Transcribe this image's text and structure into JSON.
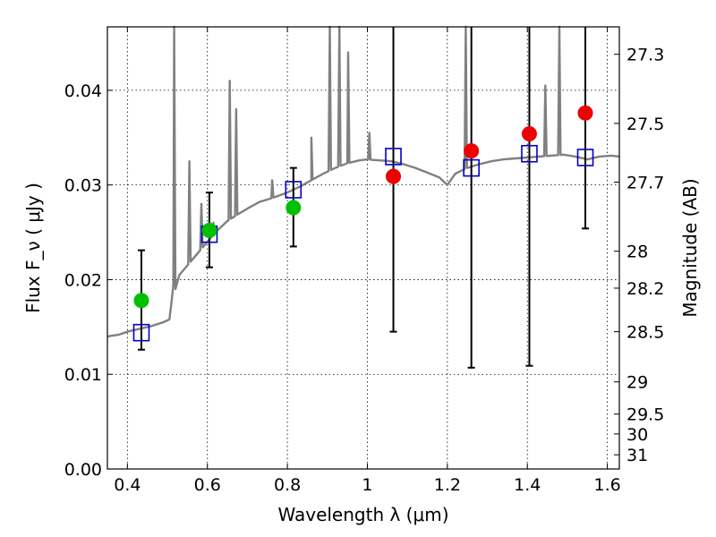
{
  "chart_data": {
    "type": "scatter",
    "xlabel": "Wavelength  λ (μm)",
    "ylabel": "Flux  F_ν  ( μJy )",
    "ylabel_right": "Magnitude (AB)",
    "xlim": [
      0.35,
      1.63
    ],
    "ylim": [
      0.0,
      0.0467
    ],
    "grid": true,
    "x_ticks": [
      0.4,
      0.6,
      0.8,
      1.0,
      1.2,
      1.4,
      1.6
    ],
    "x_tick_labels": [
      "0.4",
      "0.6",
      "0.8",
      "1",
      "1.2",
      "1.4",
      "1.6"
    ],
    "y_ticks": [
      0.0,
      0.01,
      0.02,
      0.03,
      0.04
    ],
    "y_tick_labels": [
      "0.00",
      "0.01",
      "0.02",
      "0.03",
      "0.04"
    ],
    "right_ticks": [
      {
        "label": "27.3",
        "flux": 0.0438
      },
      {
        "label": "27.5",
        "flux": 0.0365
      },
      {
        "label": "27.7",
        "flux": 0.0303
      },
      {
        "label": "28",
        "flux": 0.023
      },
      {
        "label": "28.2",
        "flux": 0.0191
      },
      {
        "label": "28.5",
        "flux": 0.0145
      },
      {
        "label": "29",
        "flux": 0.0092
      },
      {
        "label": "29.5",
        "flux": 0.0058
      },
      {
        "label": "30",
        "flux": 0.0037
      },
      {
        "label": "31",
        "flux": 0.0015
      }
    ],
    "model_color": "#808080",
    "model_spectrum": [
      [
        0.35,
        0.014
      ],
      [
        0.38,
        0.0142
      ],
      [
        0.4,
        0.0145
      ],
      [
        0.43,
        0.0148
      ],
      [
        0.46,
        0.0151
      ],
      [
        0.49,
        0.0155
      ],
      [
        0.505,
        0.0158
      ],
      [
        0.51,
        0.0175
      ],
      [
        0.515,
        0.0195
      ],
      [
        0.52,
        0.019
      ],
      [
        0.53,
        0.0205
      ],
      [
        0.55,
        0.0215
      ],
      [
        0.58,
        0.023
      ],
      [
        0.6,
        0.024
      ],
      [
        0.62,
        0.025
      ],
      [
        0.65,
        0.0262
      ],
      [
        0.68,
        0.027
      ],
      [
        0.7,
        0.0275
      ],
      [
        0.73,
        0.0282
      ],
      [
        0.76,
        0.0286
      ],
      [
        0.8,
        0.0292
      ],
      [
        0.83,
        0.0298
      ],
      [
        0.86,
        0.0305
      ],
      [
        0.89,
        0.0312
      ],
      [
        0.92,
        0.0318
      ],
      [
        0.95,
        0.0323
      ],
      [
        0.98,
        0.0326
      ],
      [
        1.0,
        0.0327
      ],
      [
        1.03,
        0.0326
      ],
      [
        1.06,
        0.0325
      ],
      [
        1.09,
        0.0322
      ],
      [
        1.12,
        0.0318
      ],
      [
        1.15,
        0.0313
      ],
      [
        1.18,
        0.0308
      ],
      [
        1.2,
        0.03
      ],
      [
        1.22,
        0.0312
      ],
      [
        1.25,
        0.0318
      ],
      [
        1.28,
        0.0322
      ],
      [
        1.31,
        0.0325
      ],
      [
        1.34,
        0.0327
      ],
      [
        1.37,
        0.0328
      ],
      [
        1.4,
        0.0329
      ],
      [
        1.43,
        0.033
      ],
      [
        1.46,
        0.0331
      ],
      [
        1.49,
        0.0332
      ],
      [
        1.52,
        0.033
      ],
      [
        1.55,
        0.0327
      ],
      [
        1.58,
        0.033
      ],
      [
        1.61,
        0.0331
      ],
      [
        1.63,
        0.033
      ]
    ],
    "emission_lines": [
      {
        "x": 0.517,
        "peak": 0.0467
      },
      {
        "x": 0.555,
        "peak": 0.0325
      },
      {
        "x": 0.585,
        "peak": 0.028
      },
      {
        "x": 0.615,
        "peak": 0.026
      },
      {
        "x": 0.656,
        "peak": 0.041
      },
      {
        "x": 0.672,
        "peak": 0.038
      },
      {
        "x": 0.762,
        "peak": 0.0305
      },
      {
        "x": 0.86,
        "peak": 0.035
      },
      {
        "x": 0.906,
        "peak": 0.0467
      },
      {
        "x": 0.93,
        "peak": 0.0467
      },
      {
        "x": 0.952,
        "peak": 0.044
      },
      {
        "x": 1.005,
        "peak": 0.0355
      },
      {
        "x": 1.246,
        "peak": 0.0467
      },
      {
        "x": 1.445,
        "peak": 0.0405
      },
      {
        "x": 1.48,
        "peak": 0.0467
      }
    ],
    "series": [
      {
        "marker": "square",
        "color": "#0000cc",
        "x": [
          0.435,
          0.605,
          0.815,
          1.065,
          1.26,
          1.405,
          1.545
        ],
        "y": [
          0.0144,
          0.0248,
          0.0295,
          0.033,
          0.0318,
          0.0333,
          0.0329
        ]
      },
      {
        "marker": "circle",
        "color": "#00c000",
        "x": [
          0.435,
          0.605,
          0.815
        ],
        "y": [
          0.0178,
          0.0252,
          0.0276
        ],
        "yerr_low": [
          0.0126,
          0.0213,
          0.0235
        ],
        "yerr_high": [
          0.0231,
          0.0292,
          0.0318
        ]
      },
      {
        "marker": "circle",
        "color": "#ee0000",
        "x": [
          1.065,
          1.26,
          1.405,
          1.545
        ],
        "y": [
          0.0309,
          0.0336,
          0.0354,
          0.0376
        ],
        "yerr_low": [
          0.0145,
          0.0107,
          0.0109,
          0.0254
        ],
        "yerr_high": [
          0.0467,
          0.0467,
          0.0467,
          0.0467
        ]
      }
    ]
  }
}
